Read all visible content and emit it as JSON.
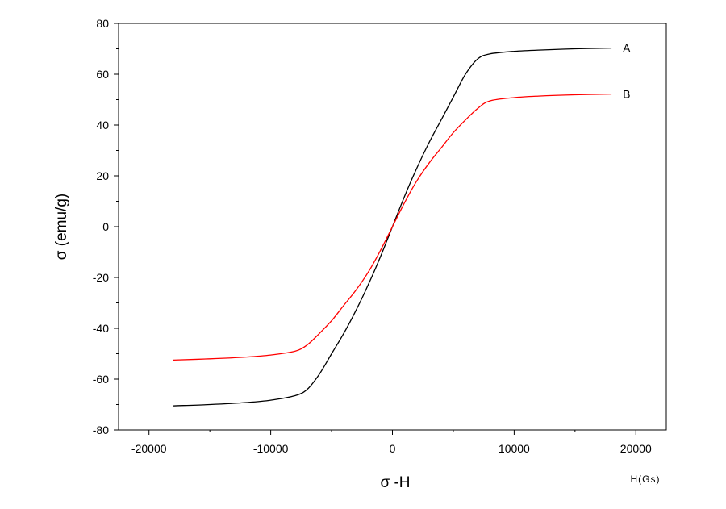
{
  "chart_data": {
    "type": "line",
    "xlabel": "σ -H",
    "x_unit_label": "H(Gs)",
    "ylabel": "σ (emu/g)",
    "xlim": [
      -22500,
      22500
    ],
    "ylim": [
      -80,
      80
    ],
    "x_ticks": [
      -20000,
      -10000,
      0,
      10000,
      20000
    ],
    "x_tick_labels": [
      "-20000",
      "-10000",
      "0",
      "10000",
      "20000"
    ],
    "y_ticks": [
      -80,
      -60,
      -40,
      -20,
      0,
      20,
      40,
      60,
      80
    ],
    "y_tick_labels": [
      "-80",
      "-60",
      "-40",
      "-20",
      "0",
      "20",
      "40",
      "60",
      "80"
    ],
    "grid": false,
    "legend": "series labels at right end of curves",
    "series": [
      {
        "name": "A",
        "color": "#000000",
        "x": [
          -18000,
          -15000,
          -12000,
          -10000,
          -8000,
          -7000,
          -6000,
          -5000,
          -4000,
          -3000,
          -2000,
          -1000,
          0,
          1000,
          2000,
          3000,
          4000,
          5000,
          6000,
          7000,
          8000,
          10000,
          12000,
          15000,
          18000
        ],
        "y": [
          -70.5,
          -70,
          -69.2,
          -68.3,
          -66.5,
          -64,
          -58,
          -50,
          -42,
          -33,
          -23,
          -12,
          0,
          12,
          23,
          33,
          42,
          51,
          60,
          66,
          68,
          69,
          69.5,
          70,
          70.3
        ]
      },
      {
        "name": "B",
        "color": "#ff0000",
        "x": [
          -18000,
          -15000,
          -12000,
          -10000,
          -8000,
          -7000,
          -6000,
          -5000,
          -4000,
          -3000,
          -2000,
          -1000,
          0,
          1000,
          2000,
          3000,
          4000,
          5000,
          6000,
          7000,
          8000,
          10000,
          12000,
          15000,
          18000
        ],
        "y": [
          -52.5,
          -52,
          -51.3,
          -50.5,
          -49,
          -46.5,
          -42,
          -37,
          -31,
          -25,
          -18,
          -9.5,
          0,
          9.5,
          18,
          25,
          31,
          37,
          42,
          46.5,
          49.5,
          50.8,
          51.4,
          51.9,
          52.2
        ]
      }
    ]
  }
}
